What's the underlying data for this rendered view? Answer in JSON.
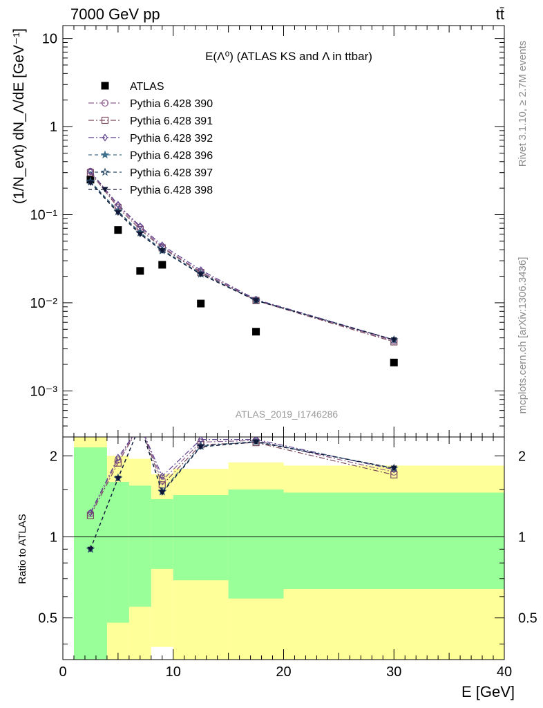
{
  "header": {
    "energy_label": "7000 GeV pp",
    "process_label": "tt̄"
  },
  "chart_data": [
    {
      "type": "scatter",
      "panel": "main",
      "title": "E(Λ⁰) (ATLAS KS and Λ in ttbar)",
      "ylabel": "(1/N_evt) dN_Λ/dE [GeV⁻¹]",
      "xlabel": "",
      "xlim": [
        0,
        40
      ],
      "ylim": [
        0.0003,
        14
      ],
      "yscale": "log",
      "y_tick_labels": [
        "10⁻³",
        "10⁻²",
        "10⁻¹",
        "1",
        "10"
      ],
      "legend_position": "top-left",
      "reference_label": "ATLAS_2019_I1746286",
      "x": [
        2.5,
        5,
        7,
        9,
        12.5,
        17.5,
        30
      ],
      "series": [
        {
          "name": "ATLAS",
          "marker": "square",
          "color": "#000000",
          "values": [
            0.25,
            0.067,
            0.023,
            0.027,
            0.0098,
            0.0047,
            0.0021
          ]
        },
        {
          "name": "Pythia 6.428 390",
          "marker": "circle",
          "color": "#8d5c8c",
          "dash": "8,3,2,3",
          "values": [
            0.31,
            0.125,
            0.072,
            0.043,
            0.0225,
            0.0108,
            0.0037
          ]
        },
        {
          "name": "Pythia 6.428 391",
          "marker": "square-open",
          "color": "#7a4a5e",
          "dash": "8,3,2,3",
          "values": [
            0.3,
            0.12,
            0.068,
            0.042,
            0.022,
            0.0106,
            0.0036
          ]
        },
        {
          "name": "Pythia 6.428 392",
          "marker": "diamond-open",
          "color": "#5b3f8f",
          "dash": "8,3,2,3",
          "values": [
            0.31,
            0.13,
            0.074,
            0.045,
            0.0235,
            0.0109,
            0.0038
          ]
        },
        {
          "name": "Pythia 6.428 396",
          "marker": "star",
          "color": "#3d6e8a",
          "dash": "5,4",
          "values": [
            0.24,
            0.11,
            0.063,
            0.04,
            0.0215,
            0.0107,
            0.0038
          ]
        },
        {
          "name": "Pythia 6.428 397",
          "marker": "star-open",
          "color": "#284a66",
          "dash": "5,4",
          "values": [
            0.235,
            0.108,
            0.062,
            0.039,
            0.0212,
            0.0106,
            0.0038
          ]
        },
        {
          "name": "Pythia 6.428 398",
          "marker": "triangle-down",
          "color": "#101636",
          "dash": "5,4",
          "values": [
            0.23,
            0.105,
            0.06,
            0.039,
            0.021,
            0.0106,
            0.0038
          ]
        }
      ]
    },
    {
      "type": "line",
      "panel": "ratio",
      "ylabel": "Ratio to ATLAS",
      "xlabel": "E [GeV]",
      "xlim": [
        0,
        40
      ],
      "ylim": [
        0.35,
        2.35
      ],
      "yscale": "log",
      "x_tick_labels": [
        "0",
        "10",
        "20",
        "30",
        "40"
      ],
      "y_tick_labels": [
        "0.5",
        "1",
        "2"
      ],
      "reference_line": 1,
      "bands": {
        "edges": [
          1,
          4,
          6,
          8,
          10,
          15,
          20,
          40
        ],
        "green": {
          "color": "#99ff99",
          "low": [
            0.35,
            0.48,
            0.55,
            0.76,
            0.69,
            0.59,
            0.64
          ],
          "high": [
            2.15,
            1.6,
            1.55,
            1.38,
            1.43,
            1.5,
            1.46
          ]
        },
        "yellow": {
          "color": "#ffff99",
          "low": [
            0.35,
            0.35,
            0.35,
            0.39,
            0.35,
            0.35,
            0.35
          ],
          "high": [
            2.35,
            2.0,
            1.95,
            1.71,
            1.79,
            1.89,
            1.84
          ]
        }
      },
      "x": [
        2.5,
        5,
        7,
        9,
        12.5,
        17.5,
        30
      ],
      "series": [
        {
          "name": "Pythia 6.428 390",
          "values": [
            1.22,
            1.93,
            2.6,
            1.62,
            2.25,
            2.28,
            1.74
          ]
        },
        {
          "name": "Pythia 6.428 391",
          "values": [
            1.2,
            1.88,
            2.6,
            1.56,
            2.2,
            2.24,
            1.7
          ]
        },
        {
          "name": "Pythia 6.428 392",
          "values": [
            1.23,
            1.97,
            2.6,
            1.68,
            2.3,
            2.3,
            1.78
          ]
        },
        {
          "name": "Pythia 6.428 396",
          "values": [
            0.9,
            1.66,
            2.6,
            1.48,
            2.18,
            2.26,
            1.8
          ]
        },
        {
          "name": "Pythia 6.428 397",
          "values": [
            0.9,
            1.65,
            2.6,
            1.47,
            2.17,
            2.26,
            1.8
          ]
        },
        {
          "name": "Pythia 6.428 398",
          "values": [
            0.9,
            1.65,
            2.6,
            1.46,
            2.16,
            2.25,
            1.8
          ]
        }
      ]
    }
  ],
  "sidebar": {
    "rivet_label": "Rivet 3.1.10, ≥ 2.7M events",
    "mcplots_label": "mcplots.cern.ch [arXiv:1306.3436]"
  }
}
